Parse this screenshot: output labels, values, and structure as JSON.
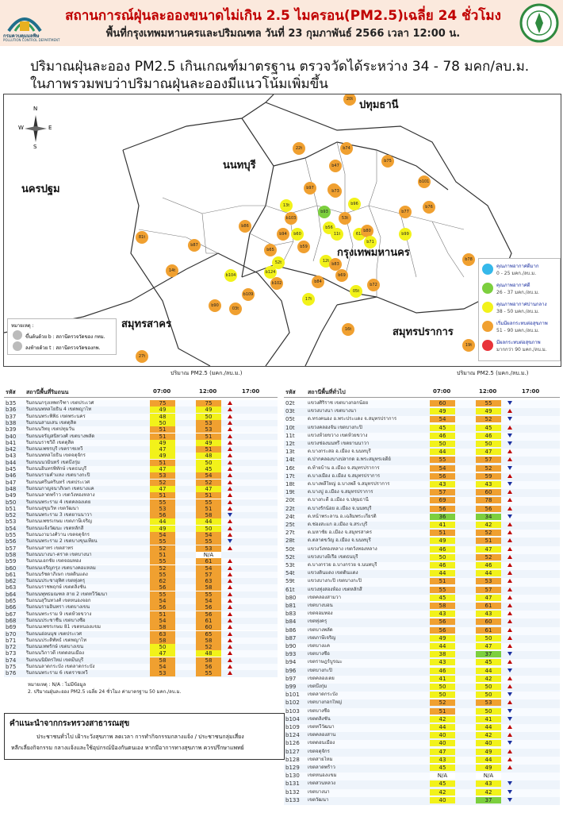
{
  "header": {
    "title": "สถานการณ์ฝุ่นละอองขนาดไม่เกิน 2.5 ไมครอน(PM2.5)เฉลี่ย 24 ชั่วโมง",
    "subtitle": "พื้นที่กรุงเทพมหานครและปริมณฑล วันที่ 23 กุมภาพันธ์ 2566 เวลา 12:00 น.",
    "logo_left_text": "กรมควบคุมมลพิษ",
    "logo_left_sub": "POLLUTION CONTROL DEPARTMENT"
  },
  "summary": {
    "line1": "ปริมาณฝุ่นละออง PM2.5 เกินเกณฑ์มาตรฐาน ตรวจวัดได้ระหว่าง 34 - 78 มคก/ลบ.ม.",
    "line2": "ในภาพรวมพบว่าปริมาณฝุ่นละอองมีแนวโน้มเพิ่มขึ้น"
  },
  "map": {
    "provinces": [
      "ปทุมธานี",
      "นนทบุรี",
      "นครปฐม",
      "กรุงเทพมหานคร",
      "สมุทรสาคร",
      "สมุทรปราการ"
    ],
    "compass": [
      "N",
      "W",
      "E",
      "S"
    ],
    "legend": [
      {
        "title": "คุณภาพอากาศดีมาก",
        "range": "0 - 25 มคก./ลบ.ม.",
        "color": "#35b8ea"
      },
      {
        "title": "คุณภาพอากาศดี",
        "range": "26 - 37 มคก./ลบ.ม.",
        "color": "#7ccf3e"
      },
      {
        "title": "คุณภาพอากาศปานกลาง",
        "range": "38 - 50 มคก./ลบ.ม.",
        "color": "#f2f21a"
      },
      {
        "title": "เริ่มมีผลกระทบต่อสุขภาพ",
        "range": "51 - 90 มคก./ลบ.ม.",
        "color": "#f0a030"
      },
      {
        "title": "มีผลกระทบต่อสุขภาพ",
        "range": "มากกว่า 90 มคก./ลบ.ม.",
        "color": "#e8333a"
      }
    ],
    "notes": {
      "title": "หมายเหตุ :",
      "n1": "ขึ้นต้นด้วย b : สถานีตรวจวัดของ กทม.",
      "n2": "ลงท้ายด้วย t : สถานีตรวจวัดของกพ."
    },
    "stations": [
      {
        "id": "20t",
        "c": "#f0a030"
      },
      {
        "id": "22t",
        "c": "#f0a030"
      },
      {
        "id": "b74",
        "c": "#f0a030"
      },
      {
        "id": "b75",
        "c": "#f0a030"
      },
      {
        "id": "b47",
        "c": "#f0a030"
      },
      {
        "id": "b67",
        "c": "#f0a030"
      },
      {
        "id": "b101",
        "c": "#f0a030"
      },
      {
        "id": "b73",
        "c": "#f0a030"
      },
      {
        "id": "b96",
        "c": "#f2f21a"
      },
      {
        "id": "b77",
        "c": "#f0a030"
      },
      {
        "id": "b76",
        "c": "#f0a030"
      },
      {
        "id": "13t",
        "c": "#f2f21a"
      },
      {
        "id": "b103",
        "c": "#f0a030"
      },
      {
        "id": "b93",
        "c": "#7ccf3e"
      },
      {
        "id": "53t",
        "c": "#f0a030"
      },
      {
        "id": "b86",
        "c": "#f0a030"
      },
      {
        "id": "81t",
        "c": "#f0a030"
      },
      {
        "id": "b60",
        "c": "#f2f21a"
      },
      {
        "id": "b56",
        "c": "#f2f21a"
      },
      {
        "id": "11t",
        "c": "#f2f21a"
      },
      {
        "id": "61t",
        "c": "#f2f21a"
      },
      {
        "id": "b80",
        "c": "#f0a030"
      },
      {
        "id": "b99",
        "c": "#f2f21a"
      },
      {
        "id": "b87",
        "c": "#f0a030"
      },
      {
        "id": "b71",
        "c": "#f2f21a"
      },
      {
        "id": "b78",
        "c": "#f0a030"
      },
      {
        "id": "14t",
        "c": "#f0a030"
      },
      {
        "id": "52t",
        "c": "#f2f21a"
      },
      {
        "id": "12t",
        "c": "#f2f21a"
      },
      {
        "id": "b104",
        "c": "#f2f21a"
      },
      {
        "id": "b124",
        "c": "#f2f21a"
      },
      {
        "id": "b83",
        "c": "#f0a030"
      },
      {
        "id": "b69",
        "c": "#f0a030"
      },
      {
        "id": "b102",
        "c": "#f0a030"
      },
      {
        "id": "b84",
        "c": "#f0a030"
      },
      {
        "id": "b72",
        "c": "#f0a030"
      },
      {
        "id": "05t",
        "c": "#f2f21a"
      },
      {
        "id": "17t",
        "c": "#f2f21a"
      },
      {
        "id": "b109",
        "c": "#f0a030"
      },
      {
        "id": "b90",
        "c": "#f0a030"
      },
      {
        "id": "03t",
        "c": "#f0a030"
      },
      {
        "id": "16t",
        "c": "#f0a030"
      },
      {
        "id": "19t",
        "c": "#f0a030"
      },
      {
        "id": "27t",
        "c": "#f0a030"
      },
      {
        "id": "b97",
        "c": "#f0a030"
      },
      {
        "id": "b59",
        "c": "#f0a030"
      },
      {
        "id": "b65",
        "c": "#f0a030"
      },
      {
        "id": "b94",
        "c": "#f0a030"
      }
    ]
  },
  "left_table": {
    "unit_header": "ปริมาณ PM2.5 (มคก./ลบ.ม.)",
    "col_code": "รหัส",
    "col_name": "สถานีพื้นที่ริมถนน",
    "col_t1": "07:00",
    "col_t2": "12:00",
    "col_t3": "17:00",
    "rows": [
      [
        "b35",
        "ริมถนนกรุงเทพกรีฑา เขตประเวศ",
        "75",
        "75",
        "up"
      ],
      [
        "b36",
        "ริมถนนพหลโยธิน 4 เขตพญาไท",
        "49",
        "49",
        "up"
      ],
      [
        "b37",
        "ริมถนนพระพิพิธ เขตพระนคร",
        "48",
        "50",
        "up"
      ],
      [
        "b38",
        "ริมถนนสามเสน เขตดุสิต",
        "50",
        "53",
        "up"
      ],
      [
        "b39",
        "ริมถนนวิทยุ เขตปทุมวัน",
        "51",
        "53",
        "up"
      ],
      [
        "b40",
        "ริมถนนจรัญสนิทวงศ์ เขตบางพลัด",
        "51",
        "51",
        "up"
      ],
      [
        "b41",
        "ริมถนนราชวิถี เขตดุสิต",
        "49",
        "49",
        "up"
      ],
      [
        "b42",
        "ริมถนนเพชรบุรี เขตราชเทวี",
        "47",
        "51",
        "up"
      ],
      [
        "b43",
        "ริมถนนพหลโยธิน เขตจตุจักร",
        "49",
        "48",
        "up"
      ],
      [
        "b44",
        "ริมถนนนวมินทร์ เขตบึงกุ่ม",
        "51",
        "50",
        "up"
      ],
      [
        "b45",
        "ริมถนนอินทรพิทักษ์ เขตธนบุรี",
        "47",
        "45",
        "up"
      ],
      [
        "b46",
        "ริมถนนรามคำแหง เขตบางกะปิ",
        "53",
        "54",
        "up"
      ],
      [
        "b47",
        "ริมถนนศรีนครินทร์ เขตประเวศ",
        "52",
        "52",
        "up"
      ],
      [
        "b48",
        "ริมถนนกาญจนาภิเษก เขตบางแค",
        "47",
        "47",
        "up"
      ],
      [
        "b49",
        "ริมถนนลาดพร้าว เขตวังทองหลาง",
        "51",
        "51",
        "up"
      ],
      [
        "b50",
        "ริมถนนพระราม 4 เขตคลองเตย",
        "55",
        "55",
        "up"
      ],
      [
        "b51",
        "ริมถนนสุขุมวิท เขตวัฒนา",
        "53",
        "51",
        "up"
      ],
      [
        "b52",
        "ริมถนนพระราม 3 เขตยานนาวา",
        "56",
        "58",
        "dn"
      ],
      [
        "b53",
        "ริมถนนเพชรเกษม เขตภาษีเจริญ",
        "44",
        "44",
        "up"
      ],
      [
        "b54",
        "ริมถนนแจ้งวัฒนะ เขตหลักสี่",
        "49",
        "50",
        "up"
      ],
      [
        "b55",
        "ริมถนนงามวงศ์วาน เขตจตุจักร",
        "54",
        "54",
        "up"
      ],
      [
        "b56",
        "ริมถนนพระราม 2 เขตบางขุนเทียน",
        "55",
        "55",
        "dn"
      ],
      [
        "b57",
        "ริมถนนสาทร เขตสาทร",
        "52",
        "53",
        "up"
      ],
      [
        "b58",
        "ริมถนนบางนา-ตราด เขตบางนา",
        "51",
        "N/A",
        ""
      ],
      [
        "b59",
        "ริมถนนเอกชัย เขตจอมทอง",
        "55",
        "61",
        "up"
      ],
      [
        "b60",
        "ริมถนนเจริญกรุง เขตบางคอแหลม",
        "52",
        "54",
        "up"
      ],
      [
        "b61",
        "ริมถนนรัชดาภิเษก เขตดินแดง",
        "55",
        "57",
        "up"
      ],
      [
        "b62",
        "ริมถนนประชาอุทิศ เขตทุ่งครุ",
        "62",
        "63",
        "up"
      ],
      [
        "b63",
        "ริมถนนราชพฤกษ์ เขตตลิ่งชัน",
        "56",
        "58",
        "up"
      ],
      [
        "b64",
        "ริมถนนพุทธมณฑล สาย 2 เขตทวีวัฒนา",
        "55",
        "55",
        "up"
      ],
      [
        "b65",
        "ริมถนนสุวินทวงศ์ เขตหนองจอก",
        "54",
        "54",
        "up"
      ],
      [
        "b66",
        "ริมถนนรามอินทรา เขตบางเขน",
        "56",
        "56",
        "up"
      ],
      [
        "b67",
        "ริมถนนพระราม 9 เขตห้วยขวาง",
        "51",
        "56",
        "up"
      ],
      [
        "b68",
        "ริมถนนประชาชื่น เขตบางซื่อ",
        "54",
        "61",
        "up"
      ],
      [
        "b69",
        "ริมถนนเพชรเกษม 81 เขตหนองแขม",
        "58",
        "60",
        "up"
      ],
      [
        "b70",
        "ริมถนนอ่อนนุช เขตประเวศ",
        "63",
        "65",
        "up"
      ],
      [
        "b71",
        "ริมถนนประดิพัทธ์ เขตพญาไท",
        "58",
        "58",
        "up"
      ],
      [
        "b72",
        "ริมถนนเทพรักษ์ เขตบางเขน",
        "50",
        "52",
        "up"
      ],
      [
        "b73",
        "ริมถนนวิภาวดี เขตดอนเมือง",
        "47",
        "48",
        "up"
      ],
      [
        "b74",
        "ริมถนนนิมิตรใหม่ เขตมีนบุรี",
        "58",
        "58",
        "up"
      ],
      [
        "b75",
        "ริมถนนลาดกระบัง เขตลาดกระบัง",
        "54",
        "56",
        "up"
      ],
      [
        "b76",
        "ริมถนนพระราม 6 เขตราชเทวี",
        "53",
        "55",
        "up"
      ]
    ],
    "footnote1": "หมายเหตุ : N/A : ไม่มีข้อมูล",
    "footnote2": "2. ปริมาณฝุ่นละออง PM2.5 เฉลี่ย 24 ชั่วโมง ค่ามาตรฐาน 50 มคก./ลบ.ม."
  },
  "right_table": {
    "unit_header": "ปริมาณ PM2.5 (มคก./ลบ.ม.)",
    "col_code": "รหัส",
    "col_name": "สถานีพื้นที่ทั่วไป",
    "col_t1": "07:00",
    "col_t2": "12:00",
    "col_t3": "17:00",
    "rows": [
      [
        "02t",
        "แขวงศิริราช เขตบางกอกน้อย",
        "60",
        "55",
        "dn"
      ],
      [
        "03t",
        "แขวงบางนา เขตบางนา",
        "49",
        "49",
        "up"
      ],
      [
        "05t",
        "ต.ทรงคนอง อ.พระประแดง จ.สมุทรปราการ",
        "54",
        "52",
        "dn"
      ],
      [
        "10t",
        "แขวงคลองจั่น เขตบางกะปิ",
        "45",
        "45",
        "up"
      ],
      [
        "11t",
        "แขวงห้วยขวาง เขตห้วยขวาง",
        "46",
        "46",
        "dn"
      ],
      [
        "12t",
        "แขวงช่องนนทรี เขตยานนาวา",
        "50",
        "50",
        "dn"
      ],
      [
        "13t",
        "ต.บางกระสอ อ.เมือง จ.นนทบุรี",
        "44",
        "47",
        "up"
      ],
      [
        "14t",
        "ต.ปากคลองบางปลากด อ.พระสมุทรเจดีย์",
        "55",
        "57",
        "up"
      ],
      [
        "16t",
        "ต.ท้ายบ้าน อ.เมือง จ.สมุทรปราการ",
        "54",
        "52",
        "dn"
      ],
      [
        "17t",
        "ต.บางเมือง อ.เมือง จ.สมุทรปราการ",
        "56",
        "59",
        "up"
      ],
      [
        "18t",
        "ต.บางพลีใหญ่ อ.บางพลี จ.สมุทรปราการ",
        "43",
        "43",
        "dn"
      ],
      [
        "19t",
        "ต.บางปู อ.เมือง จ.สมุทรปราการ",
        "57",
        "60",
        "up"
      ],
      [
        "20t",
        "ต.บางกะดี อ.เมือง จ.ปทุมธานี",
        "69",
        "78",
        "up"
      ],
      [
        "22t",
        "ต.บางรักน้อย อ.เมือง จ.นนทบุรี",
        "56",
        "56",
        "up"
      ],
      [
        "24t",
        "ต.หน้าพระลาน อ.เฉลิมพระเกียรติ",
        "36",
        "34",
        "dn"
      ],
      [
        "25t",
        "ต.ช่องสะแก อ.เมือง จ.สระบุรี",
        "41",
        "42",
        "up"
      ],
      [
        "27t",
        "ต.มหาชัย อ.เมือง จ.สมุทรสาคร",
        "51",
        "52",
        "up"
      ],
      [
        "28t",
        "ต.ตลาดขวัญ อ.เมือง จ.นนทบุรี",
        "49",
        "51",
        "up"
      ],
      [
        "50t",
        "แขวงวังทองหลาง เขตวังทองหลาง",
        "46",
        "47",
        "up"
      ],
      [
        "52t",
        "แขวงบางยี่เรือ เขตธนบุรี",
        "50",
        "52",
        "up"
      ],
      [
        "53t",
        "ต.บางกรวย อ.บางกรวย จ.นนทบุรี",
        "46",
        "46",
        "up"
      ],
      [
        "54t",
        "แขวงดินแดง เขตดินแดง",
        "44",
        "44",
        "up"
      ],
      [
        "59t",
        "แขวงบางกะปิ เขตบางกะปิ",
        "51",
        "53",
        "up"
      ],
      [
        "61t",
        "แขวงทุ่งสองห้อง เขตหลักสี่",
        "55",
        "57",
        "up"
      ],
      [
        "b80",
        "เขตคลองสามวา",
        "45",
        "47",
        "up"
      ],
      [
        "b81",
        "เขตบางบอน",
        "58",
        "61",
        "up"
      ],
      [
        "b83",
        "เขตจอมทอง",
        "43",
        "43",
        "up"
      ],
      [
        "b84",
        "เขตทุ่งครุ",
        "56",
        "60",
        "up"
      ],
      [
        "b86",
        "เขตบางพลัด",
        "56",
        "61",
        "up"
      ],
      [
        "b87",
        "เขตภาษีเจริญ",
        "49",
        "50",
        "up"
      ],
      [
        "b90",
        "เขตบางแค",
        "44",
        "47",
        "up"
      ],
      [
        "b93",
        "เขตบางซื่อ",
        "38",
        "37",
        "dn"
      ],
      [
        "b94",
        "เขตราษฎร์บูรณะ",
        "43",
        "45",
        "up"
      ],
      [
        "b96",
        "เขตบางกะปิ",
        "46",
        "44",
        "dn"
      ],
      [
        "b97",
        "เขตคลองเตย",
        "41",
        "42",
        "up"
      ],
      [
        "b99",
        "เขตบึงกุ่ม",
        "50",
        "50",
        "up"
      ],
      [
        "b101",
        "เขตลาดกระบัง",
        "50",
        "50",
        "dn"
      ],
      [
        "b102",
        "เขตบางกอกใหญ่",
        "52",
        "53",
        "up"
      ],
      [
        "b103",
        "เขตบางซื่อ",
        "51",
        "50",
        "dn"
      ],
      [
        "b104",
        "เขตตลิ่งชัน",
        "42",
        "41",
        "dn"
      ],
      [
        "b109",
        "เขตทวีวัฒนา",
        "44",
        "44",
        "up"
      ],
      [
        "b124",
        "เขตคลองสาน",
        "40",
        "42",
        "up"
      ],
      [
        "b126",
        "เขตดอนเมือง",
        "40",
        "40",
        "dn"
      ],
      [
        "b127",
        "เขตจตุจักร",
        "47",
        "49",
        "up"
      ],
      [
        "b128",
        "เขตสายไหม",
        "43",
        "44",
        "up"
      ],
      [
        "b129",
        "เขตลาดพร้าว",
        "45",
        "49",
        "up"
      ],
      [
        "b130",
        "เขตหนองแขม",
        "N/A",
        "N/A",
        ""
      ],
      [
        "b131",
        "เขตสวนหลวง",
        "45",
        "43",
        "dn"
      ],
      [
        "b132",
        "เขตบางนา",
        "42",
        "42",
        "dn"
      ],
      [
        "b133",
        "เขตวัฒนา",
        "40",
        "37",
        "dn"
      ]
    ]
  },
  "advice": {
    "title": "คำแนะนำจากกระทรวงสาธารณสุข",
    "line1": "ประชาชนทั่วไป เฝ้าระวังสุขภาพ ลดเวลา การทำกิจกรรมกลางแจ้ง / ประชาชนกลุ่มเสี่ยง",
    "line2": "หลีกเลี่ยงกิจกรรม กลางแจ้งและใช้อุปกรณ์ป้องกันตนเอง หากมีอาการทางสุขภาพ ควรปรึกษาแพทย์"
  },
  "colors": {
    "orange": "#f0a030",
    "yellow": "#f2f21a",
    "green": "#7ccf3e",
    "red": "#c00000"
  }
}
